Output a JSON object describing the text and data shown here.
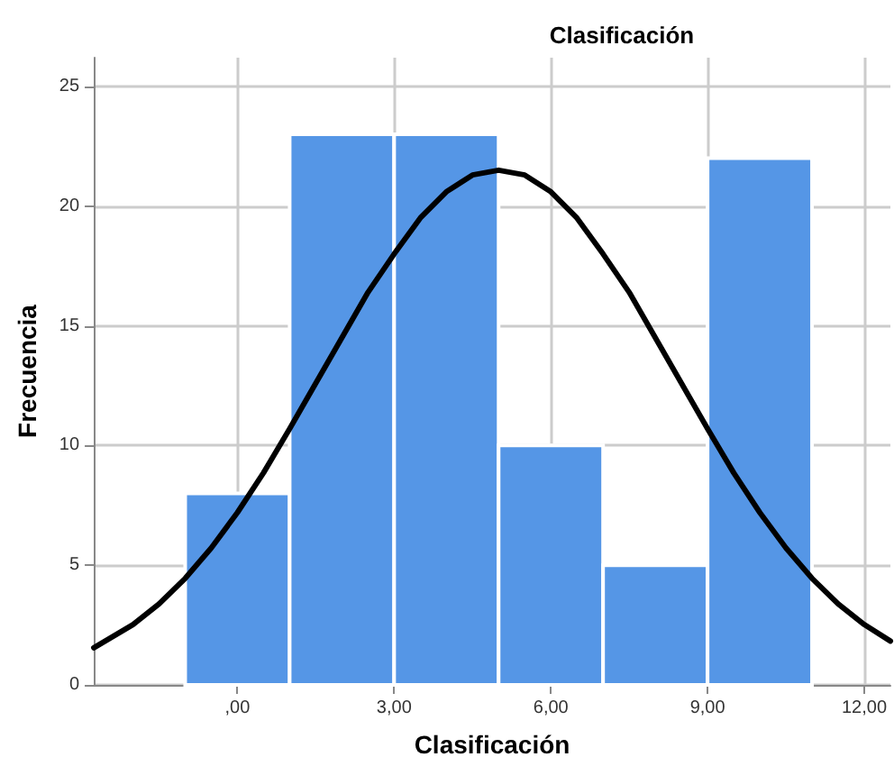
{
  "chart_data": {
    "type": "histogram",
    "title": "Clasificación",
    "xlabel": "Clasificación",
    "ylabel": "Frecuencia",
    "bins": [
      -1,
      1,
      3,
      5,
      7,
      9,
      11
    ],
    "values": [
      8,
      23,
      23,
      10,
      5,
      22
    ],
    "color": "#5596e6",
    "series": [
      {
        "type": "line",
        "color": "#000000",
        "x": [
          -2.75,
          -2,
          -1.5,
          -1,
          -0.5,
          0,
          0.5,
          1,
          1.5,
          2,
          2.5,
          3,
          3.5,
          4,
          4.5,
          5,
          5.5,
          6,
          6.5,
          7,
          7.5,
          8,
          8.5,
          9,
          9.5,
          10,
          10.5,
          11,
          11.5,
          12,
          12.5
        ],
        "values": [
          1.55,
          2.52,
          3.38,
          4.45,
          5.72,
          7.2,
          8.86,
          10.7,
          12.6,
          14.5,
          16.4,
          18.0,
          19.5,
          20.6,
          21.3,
          21.5,
          21.3,
          20.6,
          19.5,
          18.0,
          16.4,
          14.5,
          12.6,
          10.7,
          8.86,
          7.2,
          5.72,
          4.45,
          3.38,
          2.52,
          1.83
        ]
      }
    ],
    "xlim": [
      -2.75,
      12.5
    ],
    "ylim": [
      0,
      26.2
    ],
    "xticks": [
      {
        "value": 0,
        "label": ",00"
      },
      {
        "value": 3,
        "label": "3,00"
      },
      {
        "value": 6,
        "label": "6,00"
      },
      {
        "value": 9,
        "label": "9,00"
      },
      {
        "value": 12,
        "label": "12,00"
      }
    ],
    "yticks": [
      0,
      5,
      10,
      15,
      20,
      25
    ],
    "grid": true,
    "marker": "none",
    "line_style": "solid"
  }
}
